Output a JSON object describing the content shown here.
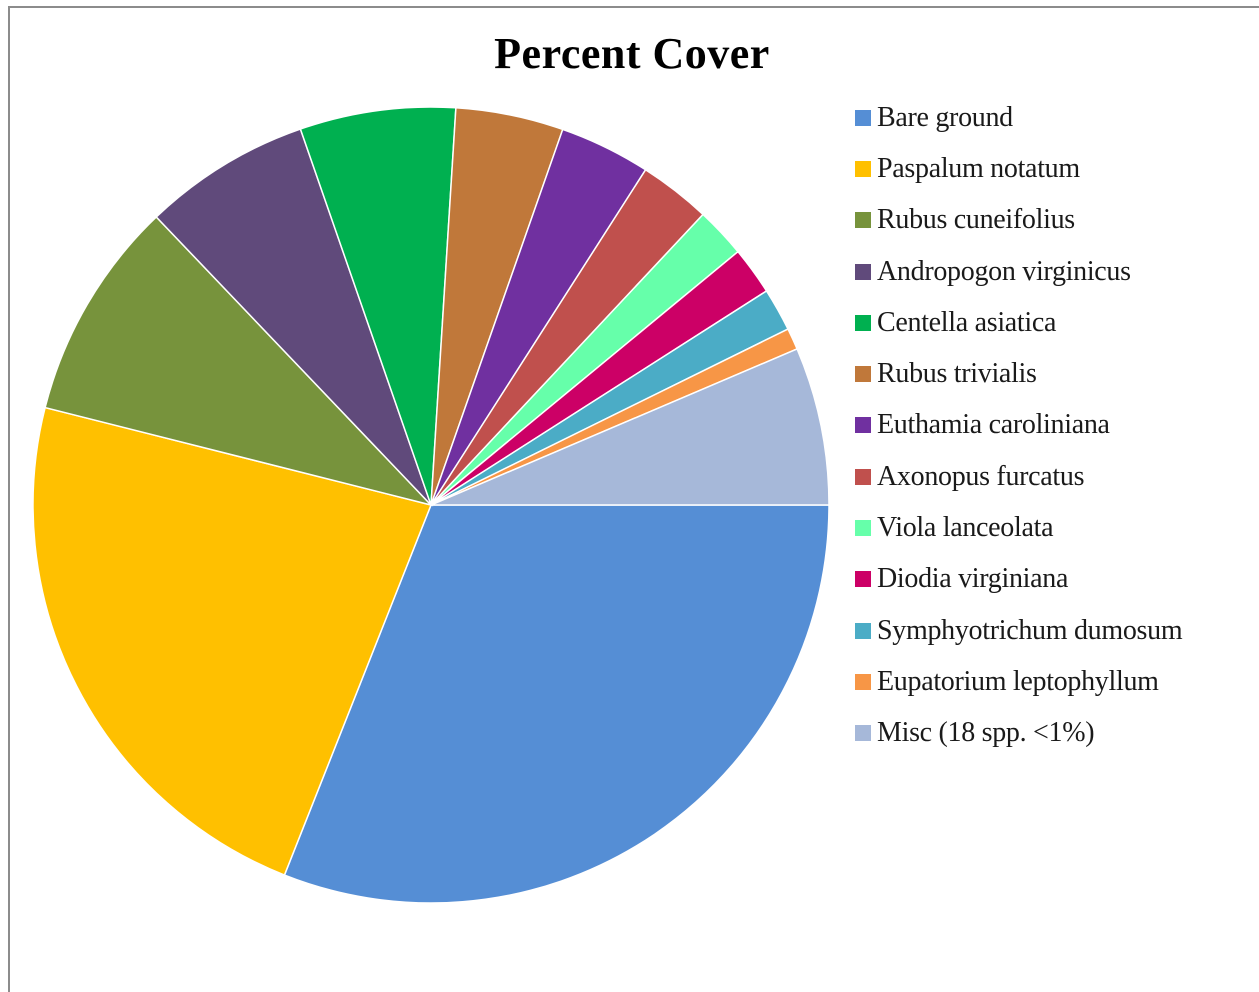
{
  "chart_data": {
    "type": "pie",
    "title": "Percent Cover",
    "legend_position": "right",
    "categories": [
      "Bare ground",
      "Paspalum notatum",
      "Rubus cuneifolius",
      "Andropogon virginicus",
      "Centella asiatica",
      "Rubus trivialis",
      "Euthamia caroliniana",
      "Axonopus furcatus",
      "Viola lanceolata",
      "Diodia virginiana",
      "Symphyotrichum dumosum",
      "Eupatorium leptophyllum",
      "Misc (18 spp. <1%)"
    ],
    "values": [
      31.9,
      23.6,
      9.2,
      7.0,
      6.5,
      4.5,
      3.8,
      3.0,
      2.1,
      2.0,
      1.8,
      0.9,
      6.6
    ],
    "colors": [
      "#558ed5",
      "#ffc000",
      "#77933c",
      "#604a7b",
      "#00b050",
      "#c0783a",
      "#7030a0",
      "#c0504d",
      "#66ffaa",
      "#cc0066",
      "#4bacc6",
      "#f79646",
      "#a6b8d9"
    ],
    "start_angle_deg": 0,
    "direction": "clockwise",
    "slice_borders": "white"
  }
}
